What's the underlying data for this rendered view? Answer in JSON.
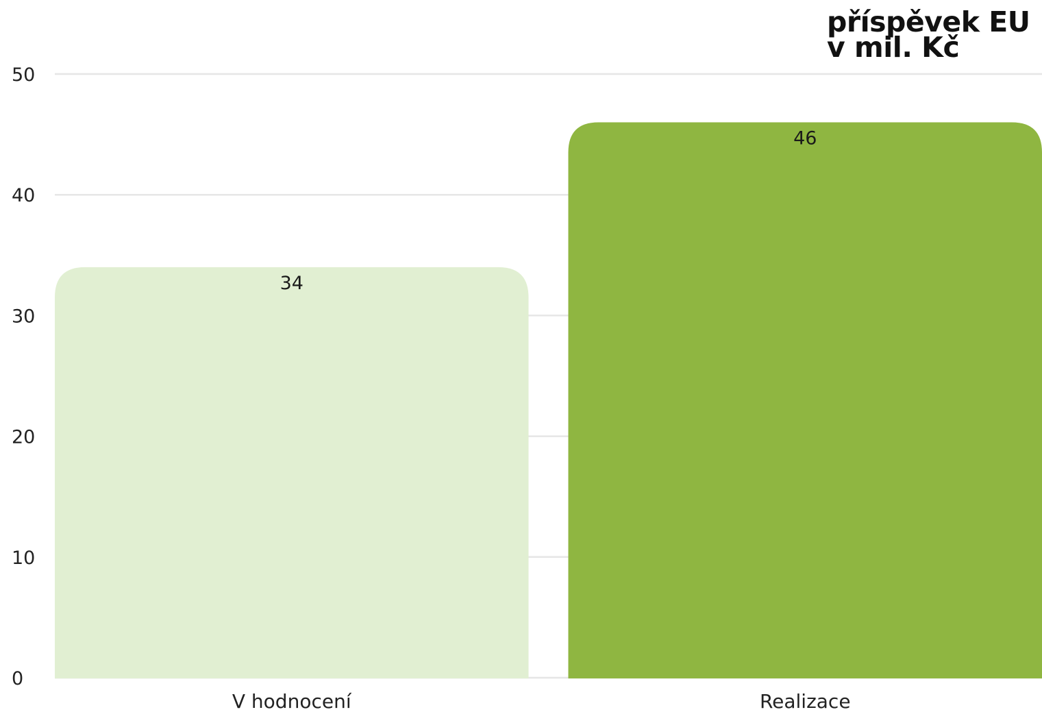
{
  "chart_data": {
    "type": "bar",
    "title": "",
    "unit_label": [
      "příspěvek EU",
      "v mil. Kč"
    ],
    "categories": [
      "V hodnocení",
      "Realizace"
    ],
    "values": [
      34,
      46
    ],
    "data_labels": [
      "34",
      "46"
    ],
    "bar_colors": [
      "#e1efd2",
      "#8fb641"
    ],
    "xlabel": "",
    "ylabel": "",
    "ylim": [
      0,
      50
    ],
    "yticks": [
      0,
      10,
      20,
      30,
      40,
      50
    ],
    "grid": true,
    "grid_color": "#e6e6e6",
    "legend": "none"
  }
}
